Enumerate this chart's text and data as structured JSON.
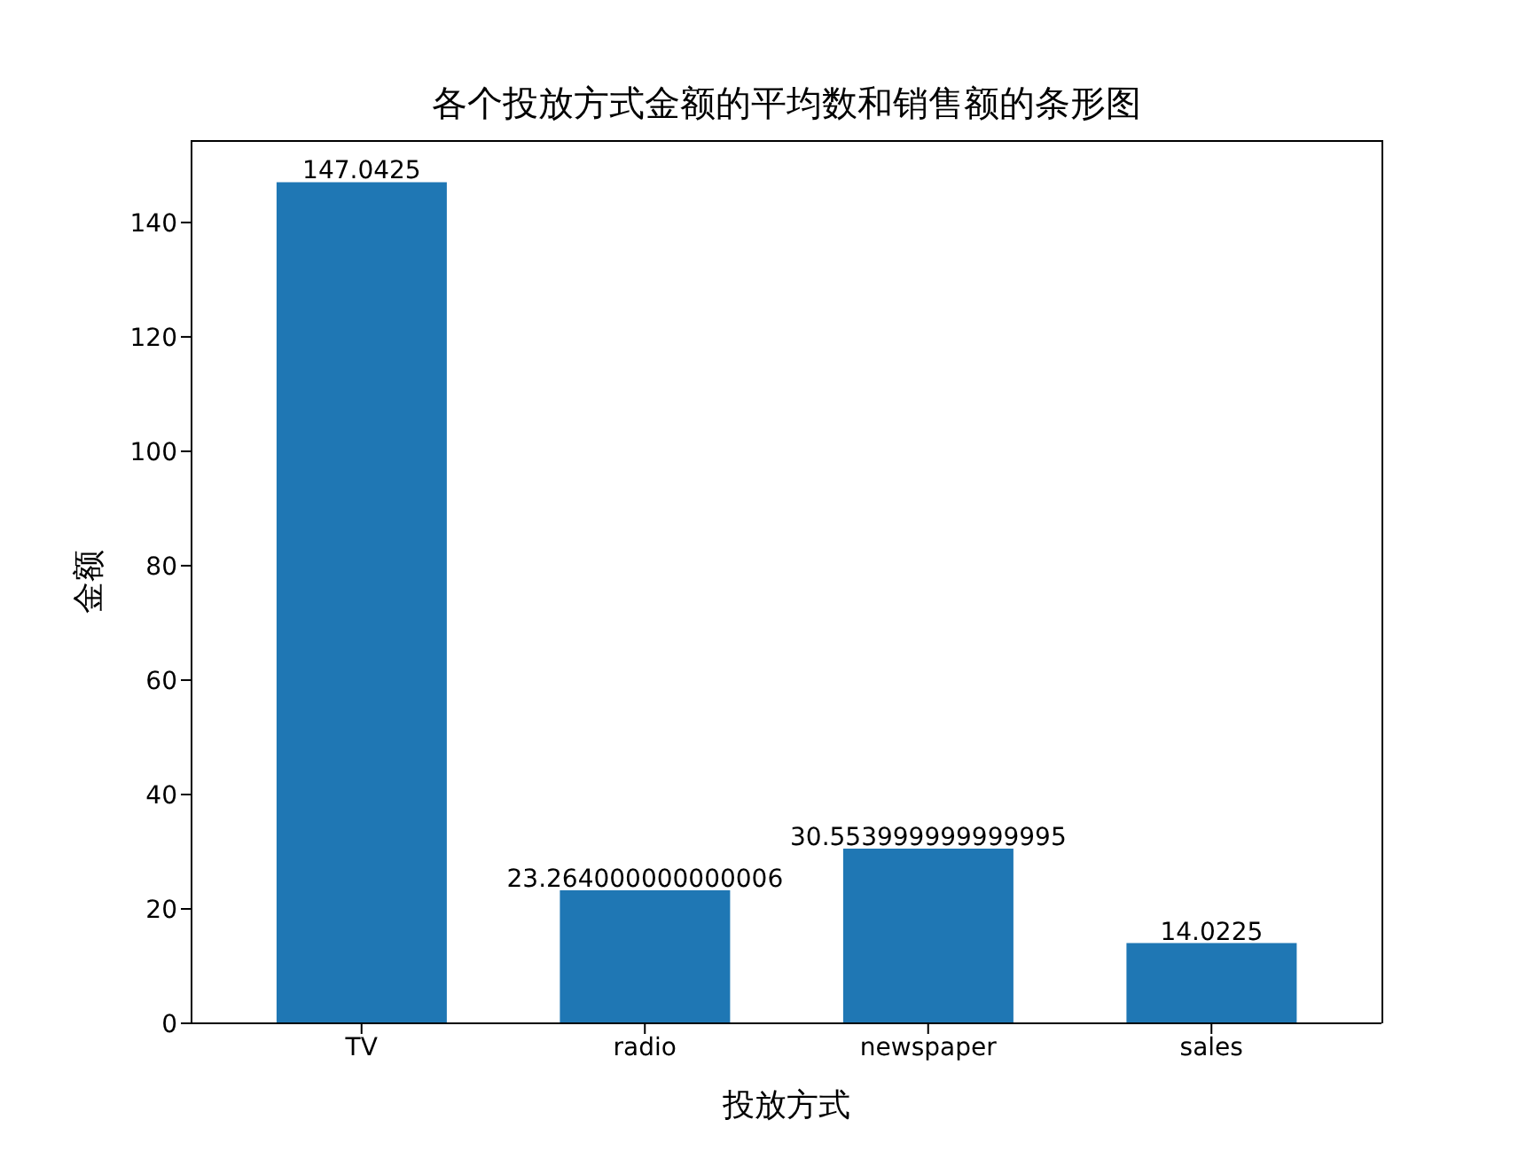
{
  "chart_data": {
    "type": "bar",
    "title": "各个投放方式金额的平均数和销售额的条形图",
    "xlabel": "投放方式",
    "ylabel": "金额",
    "categories": [
      "TV",
      "radio",
      "newspaper",
      "sales"
    ],
    "values": [
      147.0425,
      23.264000000000006,
      30.553999999999995,
      14.0225
    ],
    "color": "#1f77b4",
    "ylim": [
      0,
      154.4
    ],
    "yticks": [
      0,
      20,
      40,
      60,
      80,
      100,
      120,
      140
    ],
    "data_labels": true
  }
}
